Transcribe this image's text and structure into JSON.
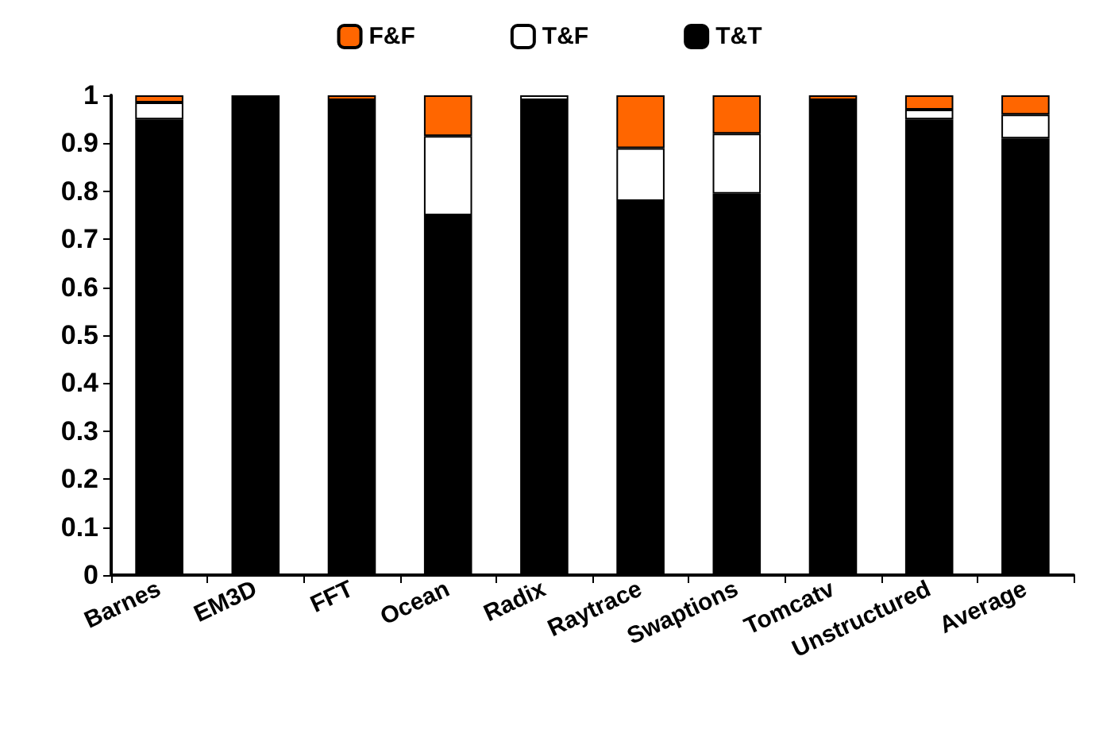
{
  "chart_data": {
    "type": "bar",
    "stacked": true,
    "legend": "top",
    "grid": false,
    "categories": [
      "Barnes",
      "EM3D",
      "FFT",
      "Ocean",
      "Radix",
      "Raytrace",
      "Swaptions",
      "Tomcatv",
      "Unstructured",
      "Average"
    ],
    "series": [
      {
        "name": "T&T",
        "color": "#000000",
        "values": [
          0.95,
          1,
          0.99,
          0.75,
          0.99,
          0.78,
          0.795,
          0.99,
          0.95,
          0.91
        ]
      },
      {
        "name": "T&F",
        "color": "#ffffff",
        "values": [
          0.035,
          0,
          0,
          0.165,
          0.01,
          0.11,
          0.125,
          0,
          0.02,
          0.05
        ]
      },
      {
        "name": "F&F",
        "color": "#ff6600",
        "values": [
          0.015,
          0,
          0.01,
          0.085,
          0,
          0.11,
          0.08,
          0.01,
          0.03,
          0.04
        ]
      }
    ],
    "ylim": [
      0,
      1
    ],
    "yticks": [
      0,
      0.1,
      0.2,
      0.3,
      0.4,
      0.5,
      0.6,
      0.7,
      0.8,
      0.9,
      1
    ]
  }
}
